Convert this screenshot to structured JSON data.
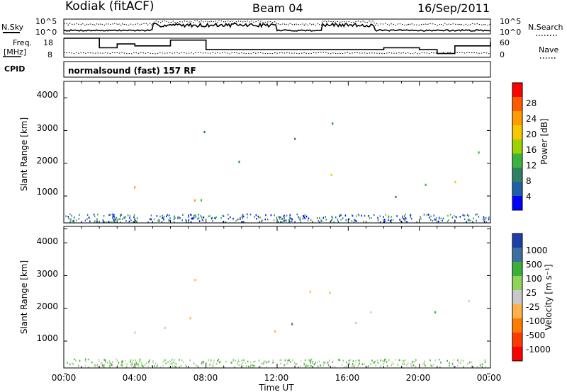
{
  "header": {
    "station": "Kodiak (fitACF)",
    "beam": "Beam 04",
    "date": "16/Sep/2011"
  },
  "noise_panel": {
    "left_label": "N.Sky",
    "right_label": "N.Search",
    "left_ticks": [
      "10^5",
      "10^0"
    ],
    "right_ticks": [
      "10^5",
      "10^0"
    ]
  },
  "freq_panel": {
    "left_label_1": "Freq.",
    "left_label_2": "[MHz]",
    "right_label": "Nave",
    "left_ticks": [
      "18",
      "8"
    ],
    "right_ticks": [
      "60",
      "0"
    ]
  },
  "cpid_panel": {
    "label": "CPID",
    "program": "normalsound (fast) 157 RF"
  },
  "power_panel": {
    "ylabel": "Slant Range [km]",
    "yticks": [
      "4000",
      "3000",
      "2000",
      "1000"
    ],
    "colorbar_label": "Power [dB]",
    "colorbar_ticks": [
      "28",
      "24",
      "20",
      "16",
      "12",
      "8",
      "4"
    ],
    "colors": [
      "#ff0000",
      "#ff5a00",
      "#ff9d00",
      "#f5c800",
      "#9dd200",
      "#3cb43c",
      "#2f7f62",
      "#1f5fa8",
      "#0000ff"
    ]
  },
  "velocity_panel": {
    "ylabel": "Slant Range [km]",
    "yticks": [
      "4000",
      "3000",
      "2000",
      "1000"
    ],
    "colorbar_label": "Velocity [m s⁻¹]",
    "colorbar_ticks": [
      "1000",
      "500",
      "100",
      "25",
      "-25",
      "-100",
      "-500",
      "-1000"
    ],
    "colors": [
      "#1f3fa8",
      "#3b6f9f",
      "#3cae3c",
      "#8fd45a",
      "#c8c8c8",
      "#ffb24a",
      "#ff7a00",
      "#ff3a00",
      "#ff0000"
    ]
  },
  "x_axis": {
    "ticks": [
      "00:00",
      "04:00",
      "08:00",
      "12:00",
      "16:00",
      "20:00",
      "00:00"
    ],
    "label": "Time UT"
  },
  "chart_data": [
    {
      "type": "line",
      "title": "Kodiak (fitACF)  Beam 04  16/Sep/2011",
      "xlabel": "Time UT",
      "ylabel": "N.Sky / N.Search",
      "ylim": [
        "10^0",
        "10^5"
      ],
      "x": [
        "00:00",
        "04:00",
        "08:00",
        "12:00",
        "16:00",
        "20:00",
        "00:00"
      ]
    },
    {
      "type": "line",
      "xlabel": "Time UT",
      "ylabel": "Freq. [MHz]",
      "ylim": [
        8,
        18
      ],
      "x": [
        "00:00",
        "01:00",
        "02:00",
        "03:00",
        "04:00",
        "06:00",
        "08:00",
        "12:00",
        "14:00",
        "18:00",
        "20:00",
        "21:00",
        "22:00",
        "24:00"
      ],
      "values": [
        18,
        18,
        13,
        15,
        14,
        17,
        12,
        12,
        12,
        13,
        12,
        10,
        14,
        16
      ]
    },
    {
      "type": "heatmap",
      "title": "Power [dB]",
      "xlabel": "Time UT",
      "ylabel": "Slant Range [km]",
      "ylim": [
        180,
        4500
      ],
      "colorbar_ticks": [
        4,
        8,
        12,
        16,
        20,
        24,
        28
      ]
    },
    {
      "type": "heatmap",
      "title": "Velocity [m s⁻¹]",
      "xlabel": "Time UT",
      "ylabel": "Slant Range [km]",
      "ylim": [
        180,
        4500
      ],
      "colorbar_ticks": [
        -1000,
        -500,
        -100,
        -25,
        25,
        100,
        500,
        1000
      ]
    }
  ]
}
